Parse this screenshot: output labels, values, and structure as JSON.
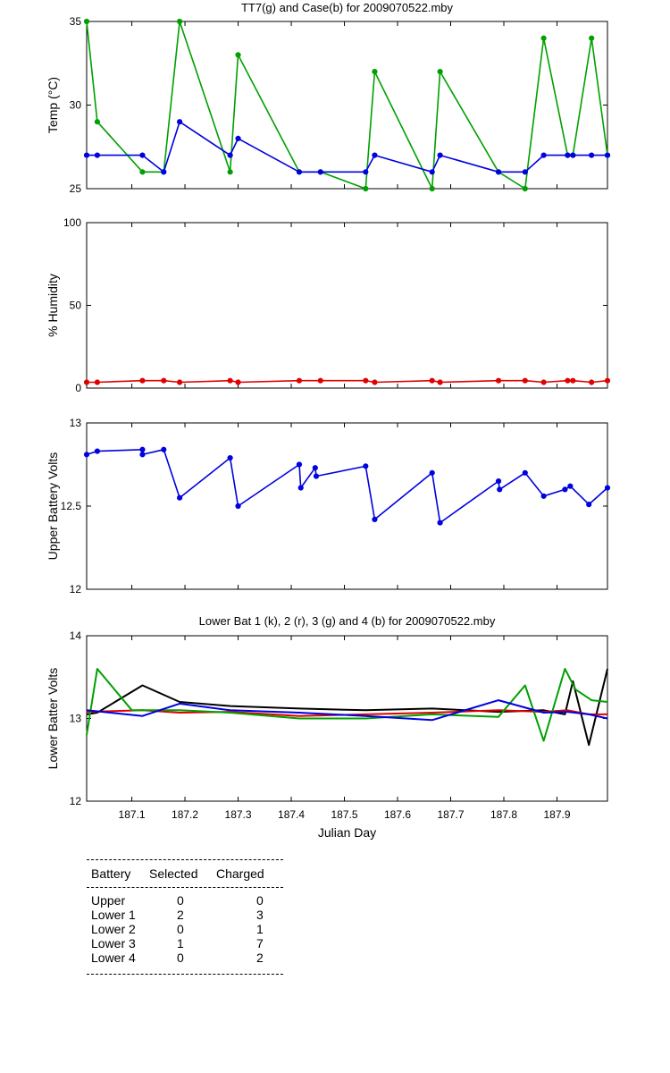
{
  "chart_data": [
    {
      "type": "line",
      "title": "TT7(g) and Case(b) for 2009070522.mby",
      "ylabel": "Temp  (°C)",
      "xlabel": "",
      "xlim": [
        187.015,
        187.995
      ],
      "ylim": [
        25,
        35
      ],
      "yticks": [
        "25",
        "30",
        "35"
      ],
      "show_xtick_labels": false,
      "series": [
        {
          "name": "TT7",
          "color": "#00a000",
          "marker": true,
          "x": [
            187.015,
            187.035,
            187.12,
            187.16,
            187.19,
            187.285,
            187.3,
            187.415,
            187.455,
            187.54,
            187.557,
            187.665,
            187.68,
            187.79,
            187.84,
            187.875,
            187.92,
            187.93,
            187.965,
            187.995
          ],
          "values": [
            35,
            29,
            26,
            26,
            35,
            26,
            33,
            26,
            26,
            25,
            32,
            25,
            32,
            26,
            25,
            34,
            27,
            27,
            34,
            27
          ]
        },
        {
          "name": "Case",
          "color": "#0000e0",
          "marker": true,
          "x": [
            187.015,
            187.035,
            187.12,
            187.16,
            187.19,
            187.285,
            187.3,
            187.415,
            187.455,
            187.54,
            187.557,
            187.665,
            187.68,
            187.79,
            187.84,
            187.875,
            187.92,
            187.93,
            187.965,
            187.995
          ],
          "values": [
            27,
            27,
            27,
            26,
            29,
            27,
            28,
            26,
            26,
            26,
            27,
            26,
            27,
            26,
            26,
            27,
            27,
            27,
            27,
            27
          ]
        }
      ]
    },
    {
      "type": "line",
      "title": "",
      "ylabel": "% Humidity",
      "xlabel": "",
      "xlim": [
        187.015,
        187.995
      ],
      "ylim": [
        0,
        100
      ],
      "yticks": [
        "0",
        "50",
        "100"
      ],
      "show_xtick_labels": false,
      "series": [
        {
          "name": "",
          "color": "#e00000",
          "marker": true,
          "x": [
            187.015,
            187.035,
            187.12,
            187.16,
            187.19,
            187.285,
            187.3,
            187.415,
            187.455,
            187.54,
            187.557,
            187.665,
            187.68,
            187.79,
            187.84,
            187.875,
            187.92,
            187.93,
            187.965,
            187.995
          ],
          "values": [
            3.5,
            3.5,
            4.5,
            4.5,
            3.5,
            4.5,
            3.5,
            4.5,
            4.5,
            4.5,
            3.5,
            4.5,
            3.5,
            4.5,
            4.5,
            3.5,
            4.5,
            4.5,
            3.5,
            4.5
          ]
        }
      ]
    },
    {
      "type": "line",
      "title": "",
      "ylabel": "Upper Battery Volts",
      "xlabel": "",
      "xlim": [
        187.015,
        187.995
      ],
      "ylim": [
        12,
        13
      ],
      "yticks": [
        "12",
        "12.5",
        "13"
      ],
      "show_xtick_labels": false,
      "series": [
        {
          "name": "",
          "color": "#0000e0",
          "marker": true,
          "x": [
            187.015,
            187.035,
            187.12,
            187.12,
            187.16,
            187.19,
            187.285,
            187.3,
            187.415,
            187.418,
            187.445,
            187.447,
            187.54,
            187.557,
            187.665,
            187.68,
            187.79,
            187.792,
            187.84,
            187.875,
            187.915,
            187.925,
            187.96,
            187.995
          ],
          "values": [
            12.81,
            12.83,
            12.84,
            12.81,
            12.84,
            12.55,
            12.79,
            12.5,
            12.75,
            12.61,
            12.73,
            12.68,
            12.74,
            12.42,
            12.7,
            12.4,
            12.65,
            12.6,
            12.7,
            12.56,
            12.6,
            12.62,
            12.51,
            12.61
          ]
        }
      ]
    },
    {
      "type": "line",
      "title": "Lower Bat 1 (k), 2 (r), 3 (g) and 4 (b) for 2009070522.mby",
      "ylabel": "Lower Batter Volts",
      "xlabel": "Julian Day",
      "xlim": [
        187.015,
        187.995
      ],
      "ylim": [
        12,
        14
      ],
      "yticks": [
        "12",
        "13",
        "14"
      ],
      "xticks": [
        "187.1",
        "187.2",
        "187.3",
        "187.4",
        "187.5",
        "187.6",
        "187.7",
        "187.8",
        "187.9"
      ],
      "show_xtick_labels": true,
      "series": [
        {
          "name": "1 (k)",
          "color": "#000000",
          "marker": false,
          "x": [
            187.015,
            187.035,
            187.12,
            187.19,
            187.285,
            187.415,
            187.54,
            187.665,
            187.79,
            187.875,
            187.915,
            187.93,
            187.96,
            187.995
          ],
          "values": [
            13.05,
            13.07,
            13.4,
            13.2,
            13.15,
            13.12,
            13.1,
            13.12,
            13.08,
            13.1,
            13.05,
            13.45,
            12.68,
            13.6
          ]
        },
        {
          "name": "2 (r)",
          "color": "#e00000",
          "marker": false,
          "x": [
            187.015,
            187.12,
            187.19,
            187.285,
            187.415,
            187.54,
            187.665,
            187.79,
            187.875,
            187.92,
            187.96,
            187.995
          ],
          "values": [
            13.08,
            13.1,
            13.07,
            13.08,
            13.03,
            13.05,
            13.07,
            13.1,
            13.08,
            13.1,
            13.05,
            13.05
          ]
        },
        {
          "name": "3 (g)",
          "color": "#00a000",
          "marker": false,
          "x": [
            187.015,
            187.035,
            187.1,
            187.19,
            187.285,
            187.415,
            187.54,
            187.665,
            187.79,
            187.84,
            187.875,
            187.915,
            187.935,
            187.965,
            187.995
          ],
          "values": [
            12.8,
            13.6,
            13.1,
            13.1,
            13.07,
            13.0,
            13.0,
            13.05,
            13.02,
            13.4,
            12.73,
            13.6,
            13.35,
            13.22,
            13.2
          ]
        },
        {
          "name": "4 (b)",
          "color": "#0000e0",
          "marker": false,
          "x": [
            187.015,
            187.12,
            187.19,
            187.285,
            187.415,
            187.54,
            187.665,
            187.79,
            187.875,
            187.92,
            187.96,
            187.995
          ],
          "values": [
            13.1,
            13.03,
            13.18,
            13.1,
            13.07,
            13.03,
            12.98,
            13.22,
            13.07,
            13.08,
            13.05,
            13.0
          ]
        }
      ]
    }
  ],
  "battery_table": {
    "headers": [
      "Battery",
      "Selected",
      "Charged"
    ],
    "rows": [
      {
        "battery": "Upper",
        "selected": "0",
        "charged": "0"
      },
      {
        "battery": "Lower 1",
        "selected": "2",
        "charged": "3"
      },
      {
        "battery": "Lower 2",
        "selected": "0",
        "charged": "1"
      },
      {
        "battery": "Lower 3",
        "selected": "1",
        "charged": "7"
      },
      {
        "battery": "Lower 4",
        "selected": "0",
        "charged": "2"
      }
    ]
  }
}
